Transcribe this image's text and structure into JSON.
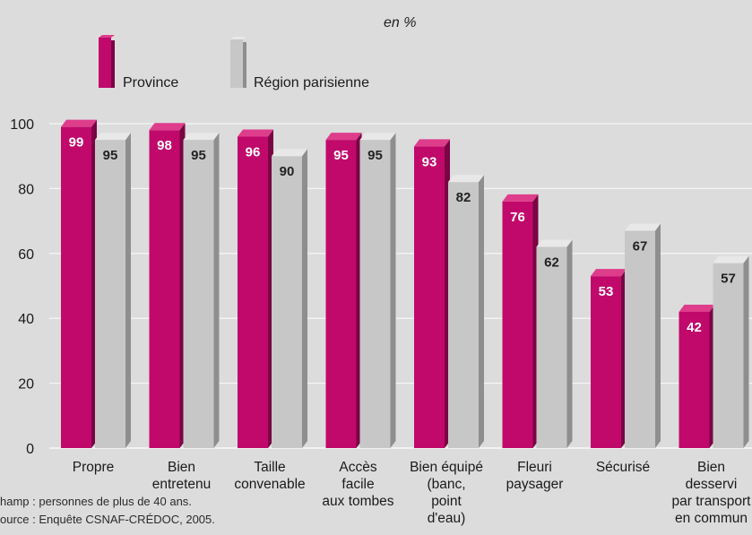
{
  "chart_data": {
    "type": "bar",
    "unit_label": "en %",
    "series": [
      {
        "name": "Province",
        "values": [
          99,
          98,
          96,
          95,
          93,
          76,
          53,
          42
        ]
      },
      {
        "name": "Région parisienne",
        "values": [
          95,
          95,
          90,
          95,
          82,
          62,
          67,
          57
        ]
      }
    ],
    "categories": [
      [
        "Propre"
      ],
      [
        "Bien",
        "entretenu"
      ],
      [
        "Taille",
        "convenable"
      ],
      [
        "Accès",
        "facile",
        "aux tombes"
      ],
      [
        "Bien équipé",
        "(banc,",
        "point",
        "d'eau)"
      ],
      [
        "Fleuri",
        "paysager"
      ],
      [
        "Sécurisé"
      ],
      [
        "Bien",
        "desservi",
        "par transport",
        "en commun"
      ]
    ],
    "ylim": [
      0,
      100
    ],
    "yticks": [
      0,
      20,
      40,
      60,
      80,
      100
    ],
    "grid": true,
    "legend_position": "top-left",
    "colors": {
      "province": "#c0096b",
      "province_side": "#7a0444",
      "province_top": "#de3d8c",
      "region": "#c7c7c7",
      "region_side": "#8e8e8e",
      "region_top": "#e8e8e8",
      "grid": "#f5f5f5",
      "background": "#dcdcdc"
    }
  },
  "notes": {
    "champ": "hamp : personnes de plus de 40 ans.",
    "source": "ource : Enquête CSNAF-CRÉDOC, 2005."
  }
}
